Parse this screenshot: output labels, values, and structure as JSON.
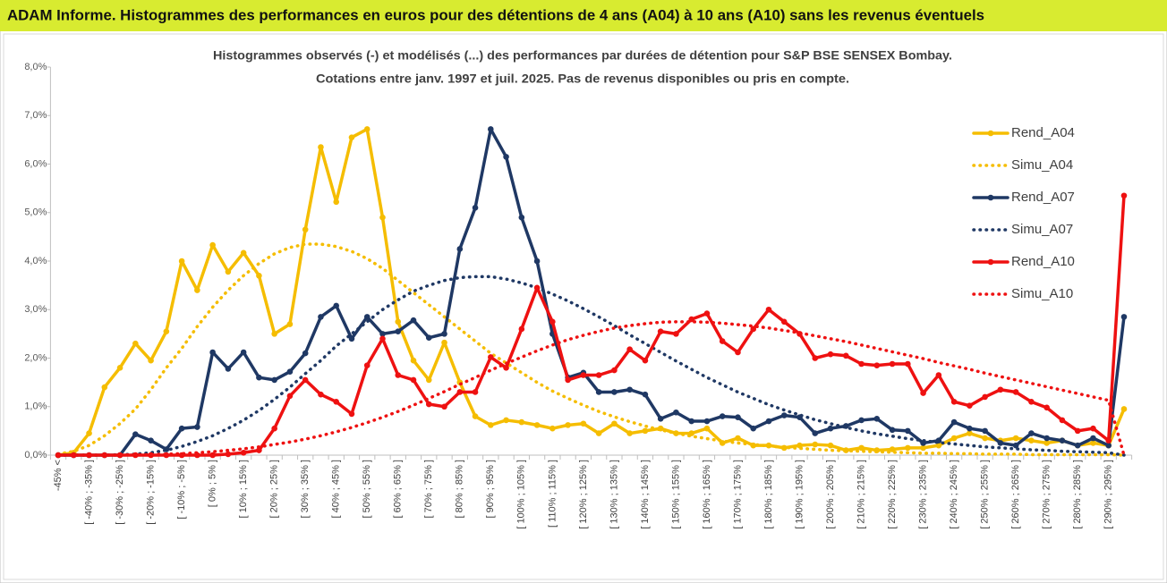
{
  "chart_data": {
    "type": "line",
    "title": "ADAM Informe. Histogrammes des performances en euros pour des détentions de 4 ans (A04) à 10 ans (A10) sans les revenus éventuels",
    "subtitle": [
      "Histogrammes observés (-) et modélisés (...) des performances par durées de détention pour S&P BSE SENSEX Bombay.",
      "Cotations entre janv. 1997 et juil. 2025. Pas de revenus disponibles ou pris en compte."
    ],
    "categories": [
      "-45% <",
      null,
      "[ -40% ; -35% ]",
      null,
      "[ -30% ; -25% ]",
      null,
      "[ -20% ; -15% ]",
      null,
      "[ -10% ; -5% ]",
      null,
      "[ 0% ; 5% ]",
      null,
      "[ 10% ; 15% ]",
      null,
      "[ 20% ; 25% ]",
      null,
      "[ 30% ; 35% ]",
      null,
      "[ 40% ; 45% ]",
      null,
      "[ 50% ; 55% ]",
      null,
      "[ 60% ; 65% ]",
      null,
      "[ 70% ; 75% ]",
      null,
      "[ 80% ; 85% ]",
      null,
      "[ 90% ; 95% ]",
      null,
      "[ 100% ; 105% ]",
      null,
      "[ 110% ; 115% ]",
      null,
      "[ 120% ; 125% ]",
      null,
      "[ 130% ; 135% ]",
      null,
      "[ 140% ; 145% ]",
      null,
      "[ 150% ; 155% ]",
      null,
      "[ 160% ; 165% ]",
      null,
      "[ 170% ; 175% ]",
      null,
      "[ 180% ; 185% ]",
      null,
      "[ 190% ; 195% ]",
      null,
      "[ 200% ; 205% ]",
      null,
      "[ 210% ; 215% ]",
      null,
      "[ 220% ; 225% ]",
      null,
      "[ 230% ; 235% ]",
      null,
      "[ 240% ; 245% ]",
      null,
      "[ 250% ; 255% ]",
      null,
      "[ 260% ; 265% ]",
      null,
      "[ 270% ; 275% ]",
      null,
      "[ 280% ; 285% ]",
      null,
      "[ 290% ; 295% ]",
      null
    ],
    "ylim": [
      0,
      8
    ],
    "yticks": [
      {
        "value": 0,
        "label": "0,0%"
      },
      {
        "value": 1,
        "label": "1,0%"
      },
      {
        "value": 2,
        "label": "2,0%"
      },
      {
        "value": 3,
        "label": "3,0%"
      },
      {
        "value": 4,
        "label": "4,0%"
      },
      {
        "value": 5,
        "label": "5,0%"
      },
      {
        "value": 6,
        "label": "6,0%"
      },
      {
        "value": 7,
        "label": "7,0%"
      },
      {
        "value": 8,
        "label": "8,0%"
      }
    ],
    "grid": false,
    "legend": "right",
    "series": [
      {
        "name": "Rend_A04",
        "color": "#f5bd00",
        "style": "solid",
        "markers": true,
        "values": [
          0,
          0.05,
          0.45,
          1.4,
          1.8,
          2.3,
          1.95,
          2.55,
          4.0,
          3.4,
          4.33,
          3.78,
          4.17,
          3.7,
          2.5,
          2.7,
          4.65,
          6.35,
          5.22,
          6.55,
          6.72,
          4.9,
          2.75,
          1.95,
          1.55,
          2.32,
          1.5,
          0.8,
          0.62,
          0.72,
          0.68,
          0.62,
          0.55,
          0.62,
          0.65,
          0.45,
          0.65,
          0.45,
          0.5,
          0.55,
          0.45,
          0.45,
          0.55,
          0.25,
          0.35,
          0.2,
          0.2,
          0.15,
          0.2,
          0.22,
          0.2,
          0.1,
          0.15,
          0.1,
          0.12,
          0.15,
          0.15,
          0.2,
          0.35,
          0.45,
          0.35,
          0.3,
          0.35,
          0.3,
          0.25,
          0.3,
          0.2,
          0.25,
          0.2,
          0.95
        ]
      },
      {
        "name": "Simu_A04",
        "color": "#f5bd00",
        "style": "dotted",
        "markers": false,
        "values": [
          0.02,
          0.08,
          0.2,
          0.4,
          0.65,
          0.95,
          1.35,
          1.8,
          2.2,
          2.65,
          3.05,
          3.4,
          3.7,
          3.95,
          4.15,
          4.28,
          4.35,
          4.35,
          4.3,
          4.2,
          4.05,
          3.85,
          3.6,
          3.35,
          3.1,
          2.85,
          2.6,
          2.35,
          2.1,
          1.9,
          1.7,
          1.5,
          1.32,
          1.17,
          1.03,
          0.9,
          0.79,
          0.69,
          0.6,
          0.52,
          0.45,
          0.39,
          0.34,
          0.29,
          0.25,
          0.22,
          0.19,
          0.16,
          0.14,
          0.12,
          0.1,
          0.09,
          0.08,
          0.07,
          0.06,
          0.05,
          0.04,
          0.04,
          0.03,
          0.03,
          0.02,
          0.02,
          0.02,
          0.01,
          0.01,
          0.01,
          0.01,
          0.01,
          0.01,
          0
        ]
      },
      {
        "name": "Rend_A07",
        "color": "#1f3864",
        "style": "solid",
        "markers": true,
        "values": [
          0,
          0,
          0,
          0,
          0,
          0.43,
          0.3,
          0.12,
          0.55,
          0.58,
          2.12,
          1.78,
          2.12,
          1.6,
          1.55,
          1.72,
          2.1,
          2.85,
          3.08,
          2.4,
          2.85,
          2.5,
          2.55,
          2.78,
          2.42,
          2.5,
          4.25,
          5.1,
          6.72,
          6.15,
          4.9,
          4.0,
          2.5,
          1.6,
          1.7,
          1.3,
          1.3,
          1.35,
          1.25,
          0.75,
          0.88,
          0.7,
          0.7,
          0.8,
          0.78,
          0.55,
          0.7,
          0.82,
          0.78,
          0.45,
          0.55,
          0.6,
          0.72,
          0.75,
          0.52,
          0.5,
          0.25,
          0.3,
          0.68,
          0.55,
          0.5,
          0.25,
          0.2,
          0.45,
          0.35,
          0.3,
          0.2,
          0.35,
          0.2,
          2.85
        ]
      },
      {
        "name": "Simu_A07",
        "color": "#1f3864",
        "style": "dotted",
        "markers": false,
        "values": [
          0,
          0,
          0,
          0,
          0.01,
          0.02,
          0.05,
          0.1,
          0.18,
          0.28,
          0.4,
          0.55,
          0.72,
          0.92,
          1.15,
          1.4,
          1.68,
          1.95,
          2.25,
          2.5,
          2.75,
          3.0,
          3.2,
          3.38,
          3.5,
          3.6,
          3.66,
          3.68,
          3.68,
          3.63,
          3.55,
          3.45,
          3.32,
          3.18,
          3.02,
          2.85,
          2.67,
          2.48,
          2.3,
          2.12,
          1.94,
          1.77,
          1.6,
          1.45,
          1.3,
          1.17,
          1.04,
          0.93,
          0.83,
          0.73,
          0.65,
          0.57,
          0.5,
          0.44,
          0.39,
          0.34,
          0.3,
          0.26,
          0.23,
          0.2,
          0.17,
          0.15,
          0.13,
          0.11,
          0.1,
          0.08,
          0.07,
          0.06,
          0.05,
          0
        ]
      },
      {
        "name": "Rend_A10",
        "color": "#ee1111",
        "style": "solid",
        "markers": true,
        "values": [
          0,
          0,
          0,
          0,
          0,
          0,
          0,
          0,
          0,
          0,
          0,
          0.02,
          0.05,
          0.1,
          0.55,
          1.22,
          1.55,
          1.25,
          1.1,
          0.85,
          1.85,
          2.4,
          1.65,
          1.55,
          1.05,
          1.0,
          1.3,
          1.3,
          2.02,
          1.8,
          2.6,
          3.45,
          2.75,
          1.55,
          1.65,
          1.65,
          1.75,
          2.18,
          1.95,
          2.55,
          2.5,
          2.8,
          2.92,
          2.35,
          2.12,
          2.6,
          3.0,
          2.75,
          2.5,
          2.0,
          2.08,
          2.05,
          1.88,
          1.85,
          1.88,
          1.88,
          1.28,
          1.65,
          1.1,
          1.02,
          1.2,
          1.35,
          1.3,
          1.1,
          0.98,
          0.72,
          0.5,
          0.55,
          0.3,
          5.35
        ]
      },
      {
        "name": "Simu_A10",
        "color": "#ee1111",
        "style": "dotted",
        "markers": false,
        "values": [
          0,
          0,
          0,
          0,
          0,
          0.01,
          0.01,
          0.02,
          0.03,
          0.05,
          0.07,
          0.1,
          0.13,
          0.17,
          0.22,
          0.27,
          0.33,
          0.4,
          0.48,
          0.57,
          0.67,
          0.78,
          0.9,
          1.03,
          1.17,
          1.31,
          1.46,
          1.6,
          1.75,
          1.89,
          2.02,
          2.15,
          2.27,
          2.38,
          2.47,
          2.55,
          2.62,
          2.67,
          2.71,
          2.74,
          2.75,
          2.75,
          2.74,
          2.72,
          2.69,
          2.66,
          2.62,
          2.57,
          2.52,
          2.46,
          2.4,
          2.34,
          2.27,
          2.2,
          2.13,
          2.06,
          1.99,
          1.91,
          1.84,
          1.77,
          1.69,
          1.62,
          1.55,
          1.48,
          1.41,
          1.34,
          1.27,
          1.2,
          1.13,
          0
        ]
      }
    ]
  }
}
